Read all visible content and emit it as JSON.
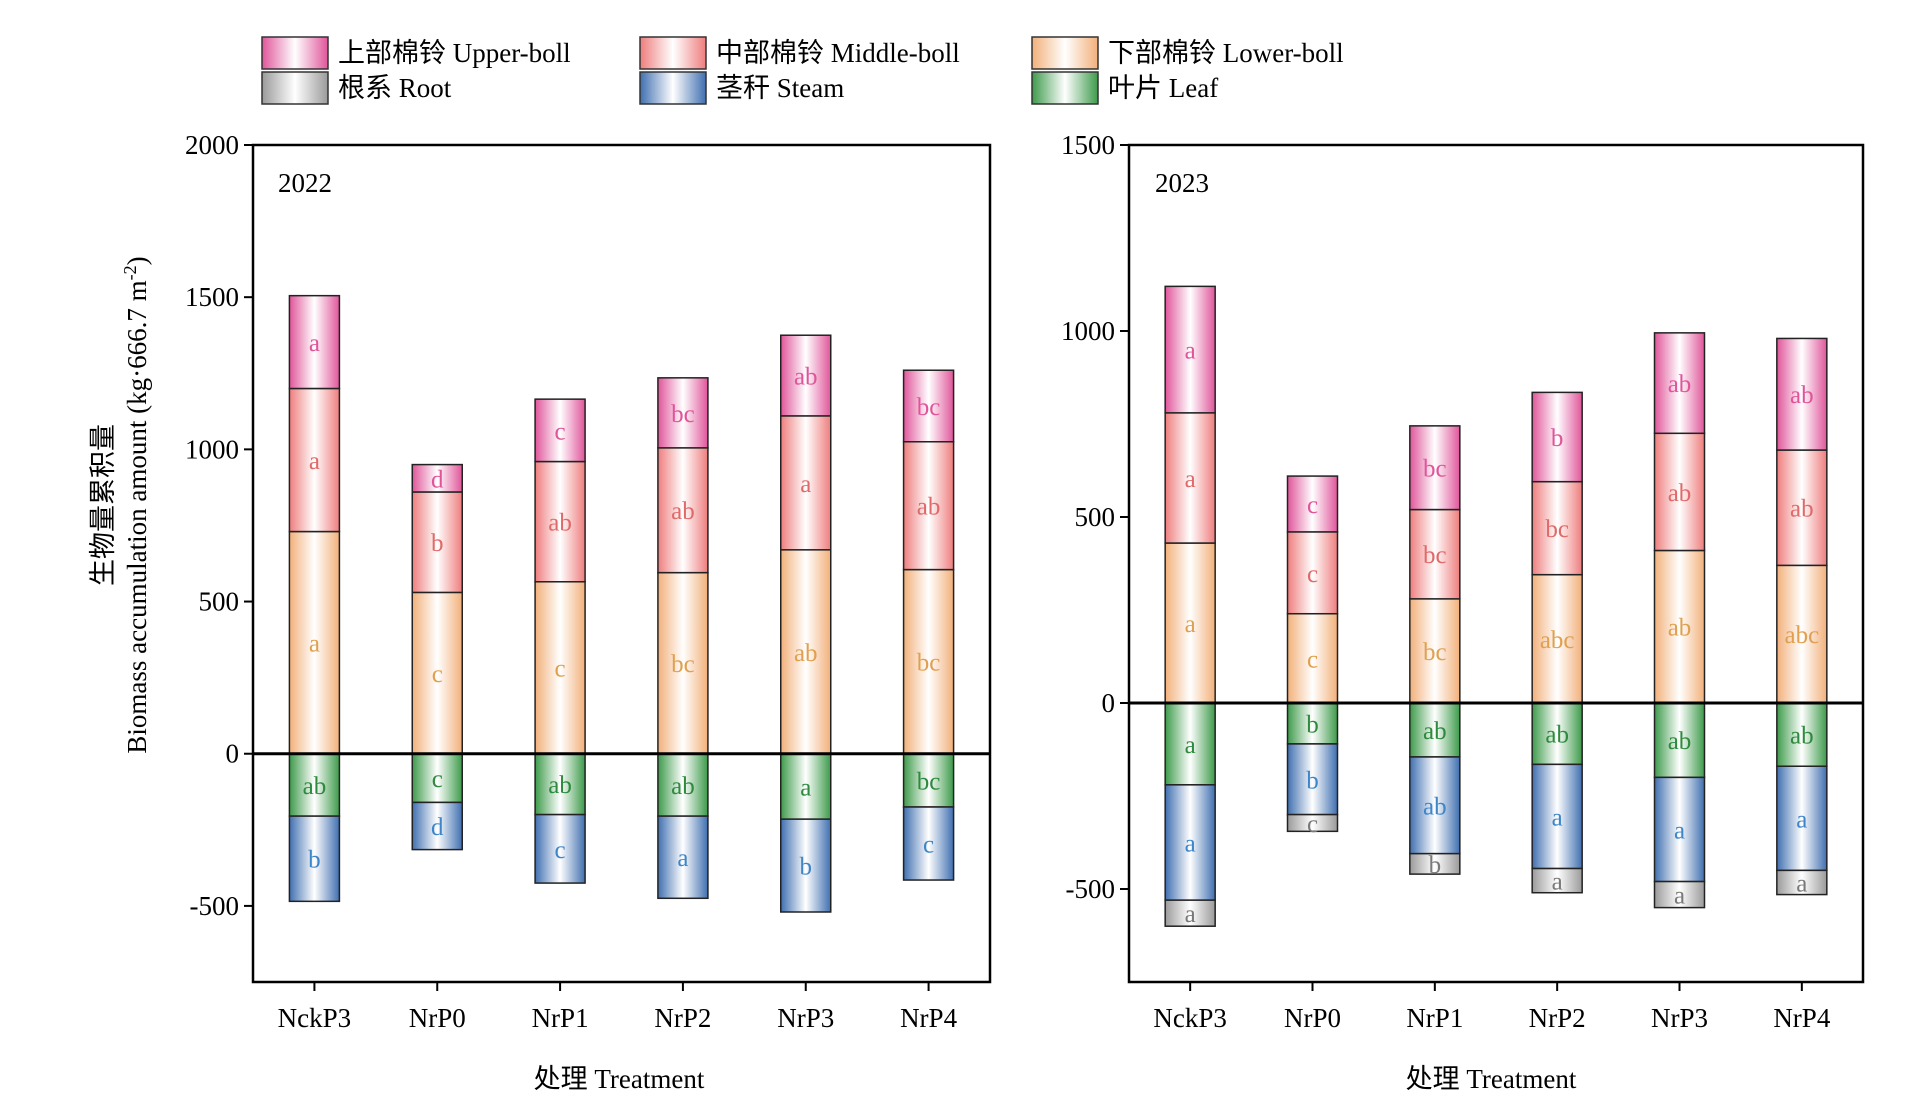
{
  "legend": [
    {
      "key": "upper",
      "label": "上部棉铃 Upper-boll",
      "color": "#e0559a"
    },
    {
      "key": "middle",
      "label": "中部棉铃 Middle-boll",
      "color": "#ef7d7d"
    },
    {
      "key": "lower",
      "label": "下部棉铃 Lower-boll",
      "color": "#f2b07a"
    },
    {
      "key": "root",
      "label": "根系 Root",
      "color": "#9a9a9a"
    },
    {
      "key": "stem",
      "label": "茎秆 Steam",
      "color": "#3f6fb0"
    },
    {
      "key": "leaf",
      "label": "叶片 Leaf",
      "color": "#3d9a4a"
    }
  ],
  "y_axis_label_cn": "生物量累积量",
  "y_axis_label_en": "Biomass accumulation amount (kg·666.7 m",
  "y_axis_label_sup": "-2",
  "y_axis_label_end": ")",
  "x_axis_label": "处理 Treatment",
  "label_colors": {
    "upper": "#e0559a",
    "middle": "#e06a6a",
    "lower": "#e0a050",
    "root": "#7a7a7a",
    "stem": "#3f86c8",
    "leaf": "#2e8a3e"
  },
  "chart_data": [
    {
      "type": "bar",
      "stacked": true,
      "panel_label": "2022",
      "categories": [
        "NckP3",
        "NrP0",
        "NrP1",
        "NrP2",
        "NrP3",
        "NrP4"
      ],
      "ylim": [
        -750,
        2000
      ],
      "yticks": [
        -500,
        0,
        500,
        1000,
        1500,
        2000
      ],
      "positive_series": [
        {
          "key": "lower",
          "values": [
            730,
            530,
            565,
            595,
            670,
            605
          ],
          "letters": [
            "a",
            "c",
            "c",
            "bc",
            "ab",
            "bc"
          ]
        },
        {
          "key": "middle",
          "values": [
            470,
            330,
            395,
            410,
            440,
            420
          ],
          "letters": [
            "a",
            "b",
            "ab",
            "ab",
            "a",
            "ab"
          ]
        },
        {
          "key": "upper",
          "values": [
            305,
            90,
            205,
            230,
            265,
            235
          ],
          "letters": [
            "a",
            "d",
            "c",
            "bc",
            "ab",
            "bc"
          ]
        }
      ],
      "negative_series": [
        {
          "key": "leaf",
          "values": [
            -205,
            -160,
            -200,
            -205,
            -215,
            -175
          ],
          "letters": [
            "ab",
            "c",
            "ab",
            "ab",
            "a",
            "bc"
          ]
        },
        {
          "key": "stem",
          "values": [
            -280,
            -155,
            -225,
            -270,
            -305,
            -240
          ],
          "letters": [
            "b",
            "d",
            "c",
            "a",
            "b",
            "c"
          ]
        }
      ]
    },
    {
      "type": "bar",
      "stacked": true,
      "panel_label": "2023",
      "categories": [
        "NckP3",
        "NrP0",
        "NrP1",
        "NrP2",
        "NrP3",
        "NrP4"
      ],
      "ylim": [
        -750,
        1500
      ],
      "yticks": [
        -500,
        0,
        500,
        1000,
        1500
      ],
      "positive_series": [
        {
          "key": "lower",
          "values": [
            430,
            240,
            280,
            345,
            410,
            370
          ],
          "letters": [
            "a",
            "c",
            "bc",
            "abc",
            "ab",
            "abc"
          ]
        },
        {
          "key": "middle",
          "values": [
            350,
            220,
            240,
            250,
            315,
            310
          ],
          "letters": [
            "a",
            "c",
            "bc",
            "bc",
            "ab",
            "ab"
          ]
        },
        {
          "key": "upper",
          "values": [
            340,
            150,
            225,
            240,
            270,
            300
          ],
          "letters": [
            "a",
            "c",
            "bc",
            "b",
            "ab",
            "ab"
          ]
        }
      ],
      "negative_series": [
        {
          "key": "leaf",
          "values": [
            -220,
            -110,
            -145,
            -165,
            -200,
            -170
          ],
          "letters": [
            "a",
            "b",
            "ab",
            "ab",
            "ab",
            "ab"
          ]
        },
        {
          "key": "stem",
          "values": [
            -310,
            -190,
            -260,
            -280,
            -280,
            -280
          ],
          "letters": [
            "a",
            "b",
            "ab",
            "a",
            "a",
            "a"
          ]
        },
        {
          "key": "root",
          "values": [
            -70,
            -45,
            -55,
            -65,
            -70,
            -65
          ],
          "letters": [
            "a",
            "c",
            "b",
            "a",
            "a",
            "a"
          ]
        }
      ]
    }
  ]
}
